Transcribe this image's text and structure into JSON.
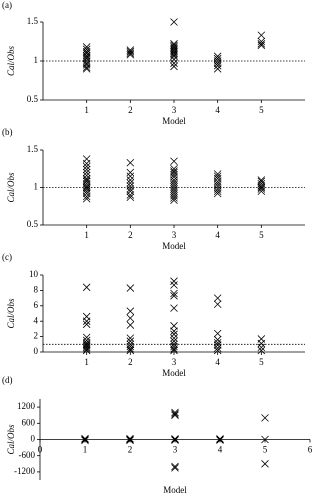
{
  "chart_data": [
    {
      "type": "scatter",
      "label": "(a)",
      "ylabel": "Cal/Obs",
      "xlabel": "Model",
      "xlim": [
        0,
        6
      ],
      "ylim": [
        0.5,
        1.5
      ],
      "xticks": [
        1,
        2,
        3,
        4,
        5
      ],
      "yticks": [
        0.5,
        1,
        1.5
      ],
      "refline": 1,
      "x_axis_position": "bottom",
      "series": [
        {
          "color": "#000000",
          "x": [
            1,
            1,
            1,
            1,
            1,
            1,
            1,
            1,
            1,
            1,
            1,
            1,
            2,
            2,
            2,
            2,
            3,
            3,
            3,
            3,
            3,
            3,
            3,
            3,
            3,
            3,
            3,
            3,
            3,
            4,
            4,
            4,
            4,
            4,
            4,
            5,
            5,
            5,
            5
          ],
          "values": [
            1.18,
            1.15,
            1.12,
            1.1,
            1.07,
            1.05,
            1.03,
            1.0,
            0.97,
            0.95,
            0.92,
            0.9,
            1.14,
            1.12,
            1.1,
            1.08,
            1.5,
            1.22,
            1.2,
            1.18,
            1.16,
            1.14,
            1.12,
            1.1,
            1.08,
            1.06,
            1.02,
            0.97,
            0.93,
            1.06,
            1.03,
            1.0,
            0.97,
            0.94,
            0.9,
            1.33,
            1.25,
            1.22,
            1.2
          ]
        }
      ]
    },
    {
      "type": "scatter",
      "label": "(b)",
      "ylabel": "Cal/Obs",
      "xlabel": "Model",
      "xlim": [
        0,
        6
      ],
      "ylim": [
        0.5,
        1.5
      ],
      "xticks": [
        1,
        2,
        3,
        4,
        5
      ],
      "yticks": [
        0.5,
        1,
        1.5
      ],
      "refline": 1,
      "x_axis_position": "bottom",
      "series": [
        {
          "color": "#000000",
          "x": [
            1,
            1,
            1,
            1,
            1,
            1,
            1,
            1,
            1,
            1,
            1,
            1,
            1,
            1,
            1,
            1,
            1,
            2,
            2,
            2,
            2,
            2,
            2,
            2,
            2,
            2,
            2,
            3,
            3,
            3,
            3,
            3,
            3,
            3,
            3,
            3,
            3,
            3,
            3,
            3,
            3,
            3,
            3,
            4,
            4,
            4,
            4,
            4,
            4,
            4,
            4,
            4,
            5,
            5,
            5,
            5,
            5,
            5,
            5
          ],
          "values": [
            1.38,
            1.32,
            1.28,
            1.24,
            1.2,
            1.16,
            1.12,
            1.1,
            1.08,
            1.05,
            1.02,
            1.0,
            0.98,
            0.95,
            0.92,
            0.88,
            0.85,
            1.33,
            1.2,
            1.15,
            1.1,
            1.06,
            1.02,
            0.98,
            0.95,
            0.9,
            0.87,
            1.35,
            1.25,
            1.22,
            1.2,
            1.17,
            1.14,
            1.1,
            1.07,
            1.04,
            1.01,
            0.98,
            0.95,
            0.92,
            0.89,
            0.86,
            0.83,
            1.18,
            1.15,
            1.12,
            1.08,
            1.05,
            1.02,
            0.98,
            0.95,
            0.92,
            1.1,
            1.08,
            1.05,
            1.02,
            1.0,
            0.98,
            0.95
          ]
        }
      ]
    },
    {
      "type": "scatter",
      "label": "(c)",
      "ylabel": "Cal/Obs",
      "xlabel": "Model",
      "xlim": [
        0,
        6
      ],
      "ylim": [
        0,
        10
      ],
      "xticks": [
        1,
        2,
        3,
        4,
        5
      ],
      "yticks": [
        0,
        2,
        4,
        6,
        8,
        10
      ],
      "refline": 1,
      "x_axis_position": "bottom",
      "series": [
        {
          "color": "#000000",
          "x": [
            1,
            1,
            1,
            1,
            1,
            1,
            1,
            1,
            1,
            1,
            1,
            1,
            2,
            2,
            2,
            2,
            2,
            2,
            2,
            2,
            2,
            2,
            3,
            3,
            3,
            3,
            3,
            3,
            3,
            3,
            3,
            3,
            3,
            3,
            3,
            3,
            4,
            4,
            4,
            4,
            4,
            4,
            4,
            4,
            5,
            5,
            5,
            5
          ],
          "values": [
            8.4,
            4.6,
            4.0,
            3.6,
            1.9,
            1.5,
            1.2,
            1.0,
            0.8,
            0.6,
            0.4,
            0.2,
            8.3,
            5.3,
            4.4,
            3.5,
            1.8,
            1.4,
            1.0,
            0.7,
            0.4,
            0.2,
            9.2,
            8.7,
            7.6,
            7.3,
            5.7,
            3.4,
            2.7,
            2.3,
            1.8,
            1.4,
            1.0,
            0.7,
            0.4,
            0.2,
            7.0,
            6.2,
            2.4,
            1.6,
            1.2,
            0.9,
            0.5,
            0.2,
            1.7,
            1.1,
            0.6,
            0.2
          ]
        }
      ]
    },
    {
      "type": "scatter",
      "label": "(d)",
      "ylabel": "Cal/Obs",
      "xlabel": "Model",
      "xlim": [
        0,
        6
      ],
      "ylim": [
        -1500,
        1500
      ],
      "xticks": [
        0,
        1,
        2,
        3,
        4,
        5,
        6
      ],
      "yticks": [
        -1200,
        -600,
        0,
        600,
        1200
      ],
      "x_axis_position": "zero",
      "series": [
        {
          "color": "#000000",
          "x": [
            1,
            1,
            1,
            2,
            2,
            2,
            3,
            3,
            3,
            3,
            3,
            3,
            3,
            3,
            4,
            4,
            4,
            5,
            5,
            5
          ],
          "values": [
            30,
            0,
            -30,
            30,
            0,
            -30,
            1000,
            950,
            900,
            20,
            0,
            -20,
            -1000,
            -1050,
            20,
            0,
            -20,
            800,
            0,
            -900
          ]
        }
      ]
    }
  ]
}
